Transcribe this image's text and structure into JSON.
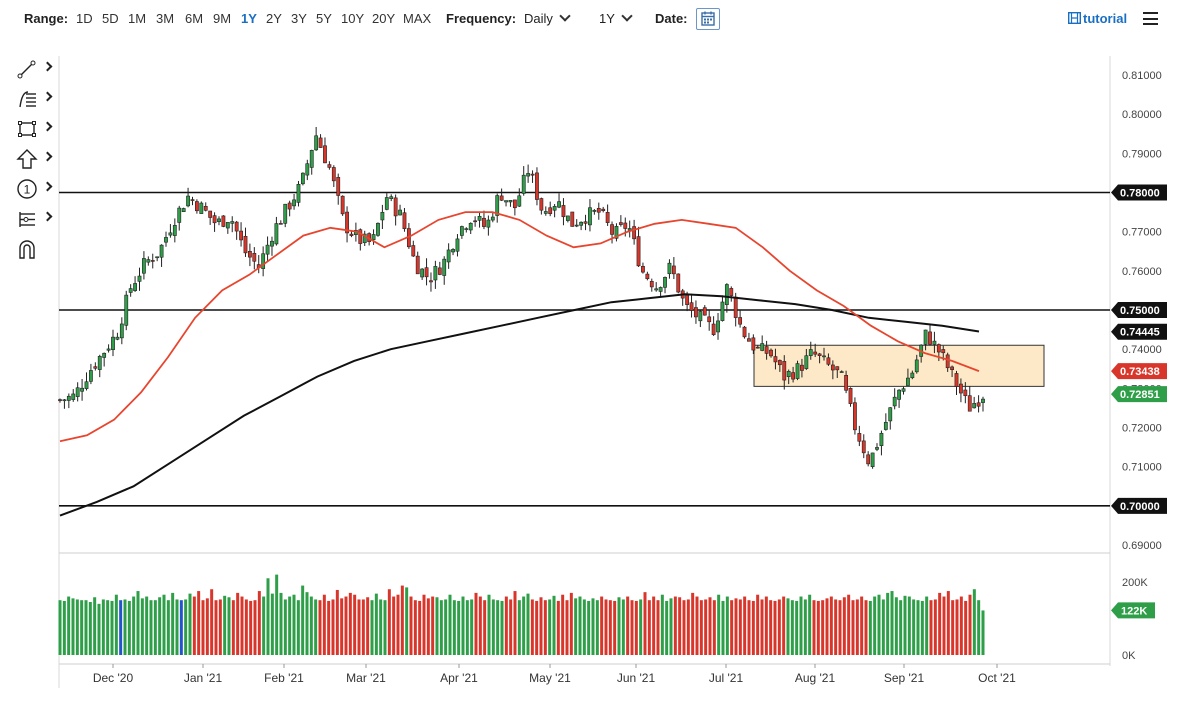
{
  "toolbar": {
    "range_label": "Range:",
    "ranges": [
      "1D",
      "5D",
      "1M",
      "3M",
      "6M",
      "9M",
      "1Y",
      "2Y",
      "3Y",
      "5Y",
      "10Y",
      "20Y",
      "MAX"
    ],
    "active_range": "1Y",
    "frequency_label": "Frequency:",
    "frequency_value": "Daily",
    "period_value": "1Y",
    "date_label": "Date:",
    "calendar_icon": "calendar-icon",
    "tutorial_label": "tutorial",
    "tutorial_icon": "film-icon",
    "menu_icon": "hamburger-menu-icon"
  },
  "side_tools": [
    {
      "name": "trendline-tool",
      "icon": "trendline-icon"
    },
    {
      "name": "fibonacci-tool",
      "icon": "fibonacci-icon"
    },
    {
      "name": "rectangle-tool",
      "icon": "rectangle-icon"
    },
    {
      "name": "arrow-tool",
      "icon": "arrow-up-icon"
    },
    {
      "name": "annotation-tool",
      "icon": "circled-one-icon"
    },
    {
      "name": "pattern-tool",
      "icon": "pattern-icon"
    },
    {
      "name": "magnet-tool",
      "icon": "magnet-icon"
    }
  ],
  "colors": {
    "up": "#2e9e48",
    "down": "#d9362b",
    "ma_short": "#e8452e",
    "ma_long": "#111111",
    "zone_fill": "#fde9c8",
    "volume_blue": "#2255cc"
  },
  "chart_data": {
    "type": "candlestick",
    "frequency": "Daily",
    "ylim": [
      0.685,
      0.815
    ],
    "y_ticks": [
      "0.81000",
      "0.80000",
      "0.79000",
      "0.78000",
      "0.77000",
      "0.76000",
      "0.75000",
      "0.74000",
      "0.73000",
      "0.72000",
      "0.71000",
      "0.70000",
      "0.69000"
    ],
    "x_labels": [
      "Dec '20",
      "Jan '21",
      "Feb '21",
      "Mar '21",
      "Apr '21",
      "May '21",
      "Jun '21",
      "Jul '21",
      "Aug '21",
      "Sep '21",
      "Oct '21"
    ],
    "price_markers": [
      {
        "value": "0.78000",
        "style": "black"
      },
      {
        "value": "0.75000",
        "style": "black"
      },
      {
        "value": "0.74445",
        "style": "black"
      },
      {
        "value": "0.73438",
        "style": "red"
      },
      {
        "value": "0.72851",
        "style": "green"
      },
      {
        "value": "0.70000",
        "style": "black"
      }
    ],
    "horizontal_lines": [
      0.78,
      0.75,
      0.7
    ],
    "zone": {
      "from_label": "Jul '21",
      "to_label": "Sep '21",
      "low": 0.7305,
      "high": 0.741
    },
    "close_path": [
      0.727,
      0.728,
      0.734,
      0.739,
      0.744,
      0.756,
      0.762,
      0.765,
      0.773,
      0.779,
      0.776,
      0.772,
      0.774,
      0.765,
      0.761,
      0.77,
      0.776,
      0.782,
      0.795,
      0.786,
      0.772,
      0.768,
      0.767,
      0.779,
      0.774,
      0.762,
      0.758,
      0.762,
      0.77,
      0.774,
      0.771,
      0.78,
      0.776,
      0.786,
      0.775,
      0.778,
      0.772,
      0.774,
      0.775,
      0.769,
      0.772,
      0.76,
      0.756,
      0.761,
      0.751,
      0.748,
      0.745,
      0.756,
      0.745,
      0.74,
      0.739,
      0.733,
      0.735,
      0.739,
      0.736,
      0.733,
      0.72,
      0.711,
      0.72,
      0.729,
      0.734,
      0.744,
      0.739,
      0.732,
      0.725,
      0.7285
    ],
    "ma_short_path": [
      0.7165,
      0.718,
      0.722,
      0.729,
      0.738,
      0.748,
      0.755,
      0.759,
      0.764,
      0.769,
      0.771,
      0.77,
      0.766,
      0.769,
      0.773,
      0.775,
      0.775,
      0.773,
      0.769,
      0.766,
      0.767,
      0.77,
      0.772,
      0.773,
      0.772,
      0.771,
      0.766,
      0.76,
      0.755,
      0.751,
      0.746,
      0.742,
      0.739,
      0.737,
      0.7344
    ],
    "ma_long_path": [
      0.6975,
      0.701,
      0.705,
      0.711,
      0.717,
      0.723,
      0.728,
      0.733,
      0.737,
      0.74,
      0.742,
      0.744,
      0.746,
      0.748,
      0.75,
      0.752,
      0.753,
      0.754,
      0.7535,
      0.7525,
      0.7515,
      0.75,
      0.748,
      0.747,
      0.746,
      0.7445
    ],
    "volume": {
      "y_ticks": [
        "200K",
        "0K"
      ],
      "last_value": "122K",
      "bars_k": [
        150,
        148,
        160,
        155,
        152,
        150,
        150,
        145,
        158,
        140,
        152,
        150,
        148,
        165,
        150,
        152,
        148,
        160,
        175,
        155,
        160,
        150,
        150,
        158,
        165,
        150,
        170,
        152,
        150,
        152,
        168,
        160,
        175,
        150,
        155,
        180,
        150,
        152,
        162,
        158,
        150,
        170,
        160,
        152,
        148,
        150,
        175,
        160,
        210,
        168,
        220,
        170,
        152,
        160,
        165,
        150,
        190,
        172,
        160,
        152,
        150,
        165,
        148,
        152,
        178,
        155,
        160,
        170,
        165,
        152,
        152,
        158,
        150,
        168,
        152,
        150,
        180,
        160,
        165,
        190,
        185,
        160,
        150,
        148,
        165,
        155,
        160,
        158,
        150,
        152,
        165,
        150,
        148,
        160,
        150,
        152,
        170,
        160,
        150,
        165,
        152,
        150,
        148,
        160,
        152,
        175,
        150,
        160,
        168,
        152,
        148,
        158,
        150,
        152,
        162,
        148,
        165,
        150,
        170,
        155,
        160,
        152,
        148,
        155,
        150,
        160,
        152,
        150,
        148,
        158,
        152,
        160,
        150,
        148,
        152,
        172,
        150,
        160,
        150,
        165,
        148,
        155,
        160,
        158,
        150,
        152,
        170,
        160,
        150,
        152,
        158,
        150,
        165,
        148,
        160,
        150,
        155,
        152,
        160,
        150,
        148,
        165,
        152,
        160,
        150,
        148,
        152,
        160,
        155,
        150,
        148,
        160,
        152,
        165,
        150,
        148,
        150,
        155,
        160,
        152,
        150,
        158,
        165,
        150,
        152,
        160,
        150,
        148,
        160,
        165,
        152,
        170,
        175,
        158,
        150,
        162,
        160,
        152,
        150,
        148,
        160,
        150,
        152,
        170,
        160,
        175,
        150,
        152,
        160,
        148,
        165,
        180,
        150,
        122
      ]
    }
  }
}
